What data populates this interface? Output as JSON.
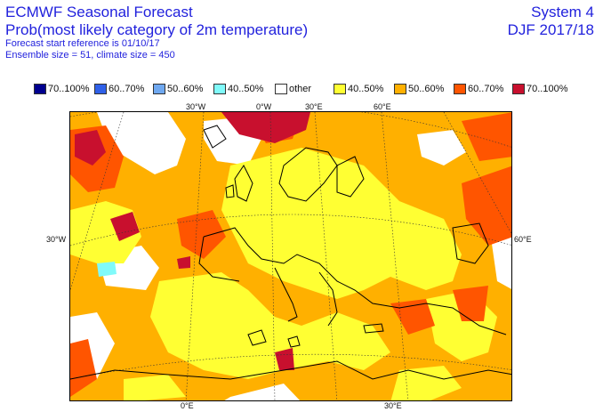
{
  "header": {
    "title": "ECMWF Seasonal Forecast",
    "subtitle": "Prob(most likely category of 2m temperature)",
    "start_reference": "Forecast start reference is 01/10/17",
    "ensemble": "Ensemble size = 51, climate size = 450",
    "system": "System 4",
    "season": "DJF 2017/18"
  },
  "legend": [
    {
      "label": "70..100%",
      "color": "#00008f"
    },
    {
      "label": "60..70%",
      "color": "#2f60e8"
    },
    {
      "label": "50..60%",
      "color": "#6fa8f0"
    },
    {
      "label": "40..50%",
      "color": "#80fafa"
    },
    {
      "label": "other",
      "color": "#ffffff"
    },
    {
      "label": "40..50%",
      "color": "#ffff33"
    },
    {
      "label": "50..60%",
      "color": "#ffb000"
    },
    {
      "label": "60..70%",
      "color": "#ff5500"
    },
    {
      "label": "70..100%",
      "color": "#c8102e"
    }
  ],
  "map_labels": {
    "top": [
      "30°W",
      "0°W",
      "30°E",
      "60°E"
    ],
    "bottom": [
      "0°E",
      "30°E"
    ],
    "left": "30°W",
    "right": "60°E"
  }
}
